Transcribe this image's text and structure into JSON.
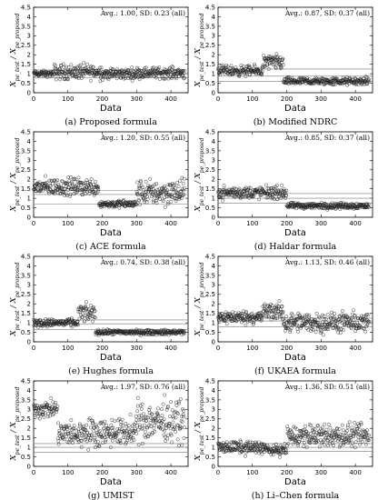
{
  "figure": {
    "xlabel": "Data",
    "ylabel_main": "X",
    "ylabel_num_sub": "pe_test",
    "ylabel_den": "X",
    "ylabel_den_sub": "pe_proposed"
  },
  "chart_data": [
    {
      "type": "scatter",
      "caption": "(a) Proposed formula",
      "annotation": "Avg.: 1.00, SD: 0.23 (all)",
      "xlim": [
        0,
        450
      ],
      "ylim": [
        0,
        4.5
      ],
      "xticks": [
        0,
        100,
        200,
        300,
        400
      ],
      "yticks": [
        0,
        0.5,
        1,
        1.5,
        2,
        2.5,
        3,
        3.5,
        4,
        4.5
      ],
      "ref_lines": [
        0.8,
        1.0,
        1.2
      ],
      "segments": [
        {
          "x": [
            0,
            60
          ],
          "center": 1.0,
          "spread": 0.12
        },
        {
          "x": [
            60,
            200
          ],
          "center": 1.1,
          "spread": 0.3
        },
        {
          "x": [
            200,
            300
          ],
          "center": 1.0,
          "spread": 0.22
        },
        {
          "x": [
            300,
            440
          ],
          "center": 1.05,
          "spread": 0.22
        }
      ]
    },
    {
      "type": "scatter",
      "caption": "(b) Modified NDRC",
      "annotation": "Avg.: 0.87, SD: 0.37 (all)",
      "xlim": [
        0,
        450
      ],
      "ylim": [
        0,
        4.5
      ],
      "xticks": [
        0,
        100,
        200,
        300,
        400
      ],
      "yticks": [
        0,
        0.5,
        1,
        1.5,
        2,
        2.5,
        3,
        3.5,
        4,
        4.5
      ],
      "ref_lines": [
        0.6,
        0.87,
        1.25
      ],
      "segments": [
        {
          "x": [
            0,
            130
          ],
          "center": 1.15,
          "spread": 0.2
        },
        {
          "x": [
            130,
            190
          ],
          "center": 1.6,
          "spread": 0.3
        },
        {
          "x": [
            190,
            440
          ],
          "center": 0.6,
          "spread": 0.15
        }
      ]
    },
    {
      "type": "scatter",
      "caption": "(c) ACE formula",
      "annotation": "Avg.: 1.20, SD: 0.55 (all)",
      "xlim": [
        0,
        450
      ],
      "ylim": [
        0,
        4.5
      ],
      "xticks": [
        0,
        100,
        200,
        300,
        400
      ],
      "yticks": [
        0,
        0.5,
        1,
        1.5,
        2,
        2.5,
        3,
        3.5,
        4,
        4.5
      ],
      "ref_lines": [
        0.7,
        1.2,
        1.4
      ],
      "segments": [
        {
          "x": [
            0,
            190
          ],
          "center": 1.6,
          "spread": 0.35
        },
        {
          "x": [
            190,
            300
          ],
          "center": 0.7,
          "spread": 0.15
        },
        {
          "x": [
            300,
            440
          ],
          "center": 1.3,
          "spread": 0.5
        }
      ]
    },
    {
      "type": "scatter",
      "caption": "(d) Haldar formula",
      "annotation": "Avg.: 0.85, SD: 0.37 (all)",
      "xlim": [
        0,
        450
      ],
      "ylim": [
        0,
        4.5
      ],
      "xticks": [
        0,
        100,
        200,
        300,
        400
      ],
      "yticks": [
        0,
        0.5,
        1,
        1.5,
        2,
        2.5,
        3,
        3.5,
        4,
        4.5
      ],
      "ref_lines": [
        0.75,
        1.0,
        1.25
      ],
      "segments": [
        {
          "x": [
            0,
            200
          ],
          "center": 1.3,
          "spread": 0.25
        },
        {
          "x": [
            200,
            440
          ],
          "center": 0.6,
          "spread": 0.12
        }
      ]
    },
    {
      "type": "scatter",
      "caption": "(e) Hughes formula",
      "annotation": "Avg.: 0.74, SD: 0.38 (all)",
      "xlim": [
        0,
        450
      ],
      "ylim": [
        0,
        4.5
      ],
      "xticks": [
        0,
        100,
        200,
        300,
        400
      ],
      "yticks": [
        0,
        0.5,
        1,
        1.5,
        2,
        2.5,
        3,
        3.5,
        4,
        4.5
      ],
      "ref_lines": [
        0.65,
        0.95,
        1.15
      ],
      "segments": [
        {
          "x": [
            0,
            130
          ],
          "center": 1.0,
          "spread": 0.15
        },
        {
          "x": [
            130,
            180
          ],
          "center": 1.5,
          "spread": 0.35
        },
        {
          "x": [
            180,
            440
          ],
          "center": 0.5,
          "spread": 0.1
        }
      ]
    },
    {
      "type": "scatter",
      "caption": "(f) UKAEA formula",
      "annotation": "Avg.: 1.13, SD: 0.46 (all)",
      "xlim": [
        0,
        450
      ],
      "ylim": [
        0,
        4.5
      ],
      "xticks": [
        0,
        100,
        200,
        300,
        400
      ],
      "yticks": [
        0,
        0.5,
        1,
        1.5,
        2,
        2.5,
        3,
        3.5,
        4,
        4.5
      ],
      "ref_lines": [
        0.8,
        1.1,
        1.25
      ],
      "segments": [
        {
          "x": [
            0,
            130
          ],
          "center": 1.3,
          "spread": 0.25
        },
        {
          "x": [
            130,
            190
          ],
          "center": 1.6,
          "spread": 0.35
        },
        {
          "x": [
            190,
            440
          ],
          "center": 1.0,
          "spread": 0.4
        }
      ]
    },
    {
      "type": "scatter",
      "caption": "(g) UMIST",
      "annotation": "Avg.: 1.97, SD: 0.76 (all)",
      "xlim": [
        0,
        450
      ],
      "ylim": [
        0,
        4.5
      ],
      "xticks": [
        0,
        100,
        200,
        300,
        400
      ],
      "yticks": [
        0,
        0.5,
        1,
        1.5,
        2,
        2.5,
        3,
        3.5,
        4,
        4.5
      ],
      "ref_lines": [
        0.75,
        1.0,
        1.2
      ],
      "segments": [
        {
          "x": [
            0,
            70
          ],
          "center": 3.0,
          "spread": 0.35
        },
        {
          "x": [
            70,
            140
          ],
          "center": 1.7,
          "spread": 0.5
        },
        {
          "x": [
            140,
            300
          ],
          "center": 1.8,
          "spread": 0.55
        },
        {
          "x": [
            300,
            440
          ],
          "center": 2.4,
          "spread": 0.8
        }
      ]
    },
    {
      "type": "scatter",
      "caption": "(h) Li–Chen formula",
      "annotation": "Avg.: 1.36, SD: 0.51 (all)",
      "xlim": [
        0,
        450
      ],
      "ylim": [
        0,
        4.5
      ],
      "xticks": [
        0,
        100,
        200,
        300,
        400
      ],
      "yticks": [
        0,
        0.5,
        1,
        1.5,
        2,
        2.5,
        3,
        3.5,
        4,
        4.5
      ],
      "ref_lines": [
        0.8,
        1.0,
        1.2
      ],
      "segments": [
        {
          "x": [
            0,
            140
          ],
          "center": 1.0,
          "spread": 0.25
        },
        {
          "x": [
            140,
            200
          ],
          "center": 0.85,
          "spread": 0.2
        },
        {
          "x": [
            200,
            440
          ],
          "center": 1.6,
          "spread": 0.45
        }
      ]
    }
  ]
}
